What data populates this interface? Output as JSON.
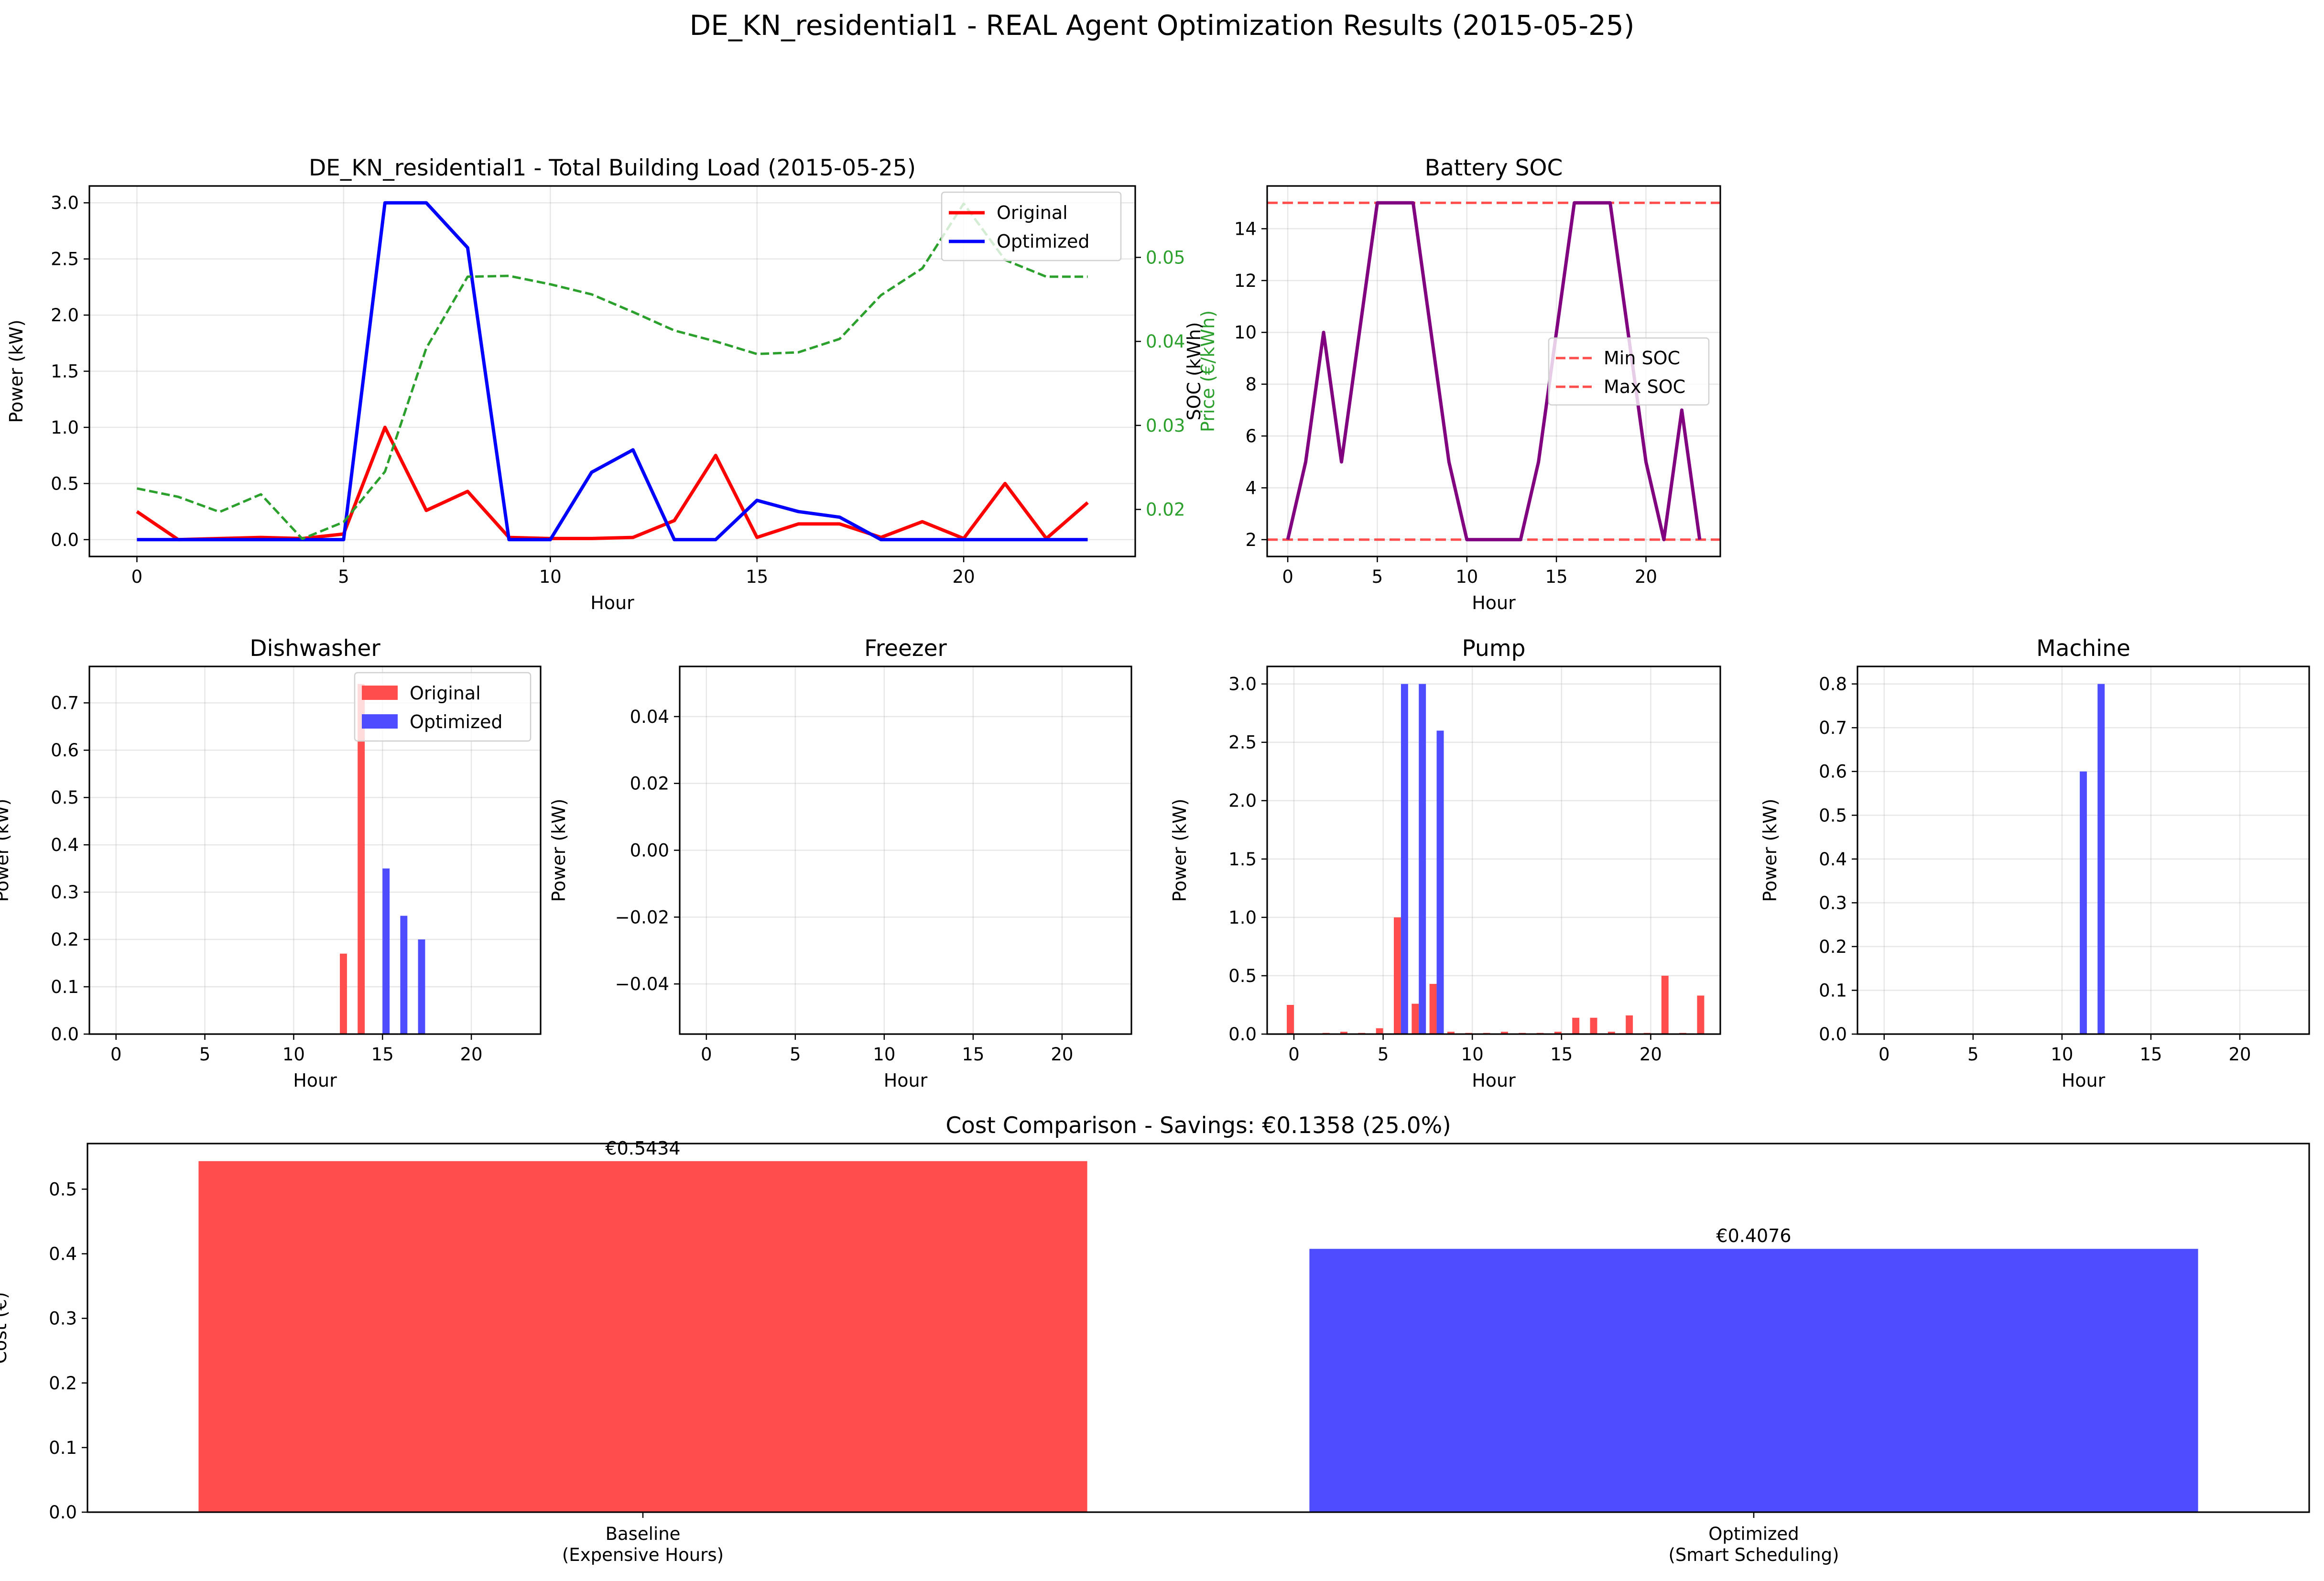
{
  "figure": {
    "title": "DE_KN_residential1 - REAL Agent Optimization Results (2015-05-25)"
  },
  "colors": {
    "original": "#ff0000",
    "optimized": "#0000ff",
    "price": "#2ca02c",
    "soc": "#800080",
    "soc_limit": "#ff4d4d",
    "bar_original": "#ff4d4d",
    "bar_optimized": "#4d4dff"
  },
  "chart_data": [
    {
      "id": "total",
      "type": "line",
      "title": "DE_KN_residential1 - Total Building Load (2015-05-25)",
      "xlabel": "Hour",
      "ylabel": "Power (kW)",
      "ylabel_right": "Price (€/kWh)",
      "xlim": [
        -1.15,
        24.15
      ],
      "ylim": [
        -0.15,
        3.15
      ],
      "ylim_right": [
        0.0144,
        0.0585
      ],
      "xticks": [
        0,
        5,
        10,
        15,
        20
      ],
      "yticks": [
        0.0,
        0.5,
        1.0,
        1.5,
        2.0,
        2.5,
        3.0
      ],
      "yticks_right": [
        0.02,
        0.03,
        0.04,
        0.05
      ],
      "grid": true,
      "legend_position": "top-right",
      "x": [
        0,
        1,
        2,
        3,
        4,
        5,
        6,
        7,
        8,
        9,
        10,
        11,
        12,
        13,
        14,
        15,
        16,
        17,
        18,
        19,
        20,
        21,
        22,
        23
      ],
      "series": [
        {
          "name": "Original",
          "color": "#ff0000",
          "axis": "left",
          "style": "solid",
          "values": [
            0.25,
            0.0,
            0.01,
            0.02,
            0.01,
            0.05,
            1.0,
            0.26,
            0.43,
            0.02,
            0.01,
            0.01,
            0.02,
            0.17,
            0.75,
            0.02,
            0.14,
            0.14,
            0.02,
            0.16,
            0.01,
            0.5,
            0.01,
            0.33
          ]
        },
        {
          "name": "Optimized",
          "color": "#0000ff",
          "axis": "left",
          "style": "solid",
          "values": [
            0.0,
            0.0,
            0.0,
            0.0,
            0.0,
            0.0,
            3.0,
            3.0,
            2.6,
            0.0,
            0.0,
            0.6,
            0.8,
            0.0,
            0.0,
            0.35,
            0.25,
            0.2,
            0.0,
            0.0,
            0.0,
            0.0,
            0.0,
            0.0
          ]
        },
        {
          "name": "",
          "color": "#2ca02c",
          "axis": "right",
          "style": "dashed",
          "values": [
            0.0225,
            0.0215,
            0.0197,
            0.0218,
            0.0165,
            0.0185,
            0.0245,
            0.0392,
            0.0477,
            0.0478,
            0.0468,
            0.0456,
            0.0435,
            0.0413,
            0.04,
            0.0385,
            0.0387,
            0.0403,
            0.0455,
            0.0487,
            0.0564,
            0.0497,
            0.0477,
            0.0477
          ]
        }
      ]
    },
    {
      "id": "soc",
      "type": "line",
      "title": "Battery SOC",
      "xlabel": "Hour",
      "ylabel": "SOC (kWh)",
      "xlim": [
        -1.15,
        24.15
      ],
      "ylim": [
        1.35,
        15.65
      ],
      "xticks": [
        0,
        5,
        10,
        15,
        20
      ],
      "yticks": [
        2,
        4,
        6,
        8,
        10,
        12,
        14
      ],
      "grid": true,
      "legend_position": "center-right",
      "x": [
        0,
        1,
        2,
        3,
        4,
        5,
        6,
        7,
        8,
        9,
        10,
        11,
        12,
        13,
        14,
        15,
        16,
        17,
        18,
        19,
        20,
        21,
        22,
        23
      ],
      "series": [
        {
          "name": "",
          "color": "#800080",
          "style": "solid",
          "values": [
            2,
            5,
            10,
            5,
            10,
            15,
            15,
            15,
            10,
            5,
            2,
            2,
            2,
            2,
            5,
            10,
            15,
            15,
            15,
            10,
            5,
            2,
            7,
            2
          ]
        }
      ],
      "hlines": [
        {
          "name": "Min SOC",
          "value": 2,
          "color": "#ff4d4d",
          "style": "dashed"
        },
        {
          "name": "Max SOC",
          "value": 15,
          "color": "#ff4d4d",
          "style": "dashed"
        }
      ]
    },
    {
      "id": "dishwasher",
      "type": "bar",
      "title": "Dishwasher",
      "xlabel": "Hour",
      "ylabel": "Power (kW)",
      "xlim": [
        -1.5,
        23.9
      ],
      "ylim": [
        0,
        0.777
      ],
      "xticks": [
        0,
        5,
        10,
        15,
        20
      ],
      "yticks": [
        0.0,
        0.1,
        0.2,
        0.3,
        0.4,
        0.5,
        0.6,
        0.7
      ],
      "grid": true,
      "legend_position": "top-right",
      "bar_width": 0.4,
      "x": [
        0,
        1,
        2,
        3,
        4,
        5,
        6,
        7,
        8,
        9,
        10,
        11,
        12,
        13,
        14,
        15,
        16,
        17,
        18,
        19,
        20,
        21,
        22,
        23
      ],
      "series": [
        {
          "name": "Original",
          "color": "#ff4d4d",
          "offset": -0.2,
          "values": [
            0,
            0,
            0,
            0,
            0,
            0,
            0,
            0,
            0,
            0,
            0,
            0,
            0,
            0.17,
            0.74,
            0,
            0,
            0,
            0,
            0,
            0,
            0,
            0,
            0
          ]
        },
        {
          "name": "Optimized",
          "color": "#4d4dff",
          "offset": 0.2,
          "values": [
            0,
            0,
            0,
            0,
            0,
            0,
            0,
            0,
            0,
            0,
            0,
            0,
            0,
            0,
            0,
            0.35,
            0.25,
            0.2,
            0,
            0,
            0,
            0,
            0,
            0
          ]
        }
      ]
    },
    {
      "id": "freezer",
      "type": "bar",
      "title": "Freezer",
      "xlabel": "Hour",
      "ylabel": "Power (kW)",
      "xlim": [
        -1.5,
        23.9
      ],
      "ylim": [
        -0.055,
        0.055
      ],
      "xticks": [
        0,
        5,
        10,
        15,
        20
      ],
      "yticks": [
        -0.04,
        -0.02,
        0.0,
        0.02,
        0.04
      ],
      "ytick_labels": [
        "−0.04",
        "−0.02",
        "0.00",
        "0.02",
        "0.04"
      ],
      "grid": true,
      "bar_width": 0.4,
      "x": [
        0,
        1,
        2,
        3,
        4,
        5,
        6,
        7,
        8,
        9,
        10,
        11,
        12,
        13,
        14,
        15,
        16,
        17,
        18,
        19,
        20,
        21,
        22,
        23
      ],
      "series": [
        {
          "name": "Original",
          "color": "#ff4d4d",
          "offset": -0.2,
          "values": [
            0,
            0,
            0,
            0,
            0,
            0,
            0,
            0,
            0,
            0,
            0,
            0,
            0,
            0,
            0,
            0,
            0,
            0,
            0,
            0,
            0,
            0,
            0,
            0
          ]
        },
        {
          "name": "Optimized",
          "color": "#4d4dff",
          "offset": 0.2,
          "values": [
            0,
            0,
            0,
            0,
            0,
            0,
            0,
            0,
            0,
            0,
            0,
            0,
            0,
            0,
            0,
            0,
            0,
            0,
            0,
            0,
            0,
            0,
            0,
            0
          ]
        }
      ]
    },
    {
      "id": "pump",
      "type": "bar",
      "title": "Pump",
      "xlabel": "Hour",
      "ylabel": "Power (kW)",
      "xlim": [
        -1.5,
        23.9
      ],
      "ylim": [
        0,
        3.15
      ],
      "xticks": [
        0,
        5,
        10,
        15,
        20
      ],
      "yticks": [
        0.0,
        0.5,
        1.0,
        1.5,
        2.0,
        2.5,
        3.0
      ],
      "grid": true,
      "bar_width": 0.4,
      "x": [
        0,
        1,
        2,
        3,
        4,
        5,
        6,
        7,
        8,
        9,
        10,
        11,
        12,
        13,
        14,
        15,
        16,
        17,
        18,
        19,
        20,
        21,
        22,
        23
      ],
      "series": [
        {
          "name": "Original",
          "color": "#ff4d4d",
          "offset": -0.2,
          "values": [
            0.25,
            0.0,
            0.01,
            0.02,
            0.01,
            0.05,
            1.0,
            0.26,
            0.43,
            0.02,
            0.01,
            0.01,
            0.02,
            0.01,
            0.01,
            0.02,
            0.14,
            0.14,
            0.02,
            0.16,
            0.01,
            0.5,
            0.01,
            0.33
          ]
        },
        {
          "name": "Optimized",
          "color": "#4d4dff",
          "offset": 0.2,
          "values": [
            0,
            0,
            0,
            0,
            0,
            0,
            3.0,
            3.0,
            2.6,
            0,
            0,
            0,
            0,
            0,
            0,
            0,
            0,
            0,
            0,
            0,
            0,
            0,
            0,
            0
          ]
        }
      ]
    },
    {
      "id": "machine",
      "type": "bar",
      "title": "Machine",
      "xlabel": "Hour",
      "ylabel": "Power (kW)",
      "xlim": [
        -1.5,
        23.9
      ],
      "ylim": [
        0,
        0.84
      ],
      "xticks": [
        0,
        5,
        10,
        15,
        20
      ],
      "yticks": [
        0.0,
        0.1,
        0.2,
        0.3,
        0.4,
        0.5,
        0.6,
        0.7,
        0.8
      ],
      "grid": true,
      "bar_width": 0.4,
      "x": [
        0,
        1,
        2,
        3,
        4,
        5,
        6,
        7,
        8,
        9,
        10,
        11,
        12,
        13,
        14,
        15,
        16,
        17,
        18,
        19,
        20,
        21,
        22,
        23
      ],
      "series": [
        {
          "name": "Original",
          "color": "#ff4d4d",
          "offset": -0.2,
          "values": [
            0,
            0,
            0,
            0,
            0,
            0,
            0,
            0,
            0,
            0,
            0,
            0,
            0,
            0,
            0,
            0,
            0,
            0,
            0,
            0,
            0,
            0,
            0,
            0
          ]
        },
        {
          "name": "Optimized",
          "color": "#4d4dff",
          "offset": 0.2,
          "values": [
            0,
            0,
            0,
            0,
            0,
            0,
            0,
            0,
            0,
            0,
            0,
            0.6,
            0.8,
            0,
            0,
            0,
            0,
            0,
            0,
            0,
            0,
            0,
            0,
            0
          ]
        }
      ]
    },
    {
      "id": "cost",
      "type": "bar",
      "title": "Cost Comparison - Savings: €0.1358 (25.0%)",
      "xlabel": "",
      "ylabel": "Cost (€)",
      "xlim": [
        -0.5,
        1.5
      ],
      "ylim": [
        0,
        0.5706
      ],
      "yticks": [
        0.0,
        0.1,
        0.2,
        0.3,
        0.4,
        0.5
      ],
      "grid": false,
      "bar_width": 0.8,
      "categories": [
        [
          "Baseline",
          "(Expensive Hours)"
        ],
        [
          "Optimized",
          "(Smart Scheduling)"
        ]
      ],
      "values": [
        0.5434,
        0.4076
      ],
      "value_labels": [
        "€0.5434",
        "€0.4076"
      ],
      "colors": [
        "#ff4d4d",
        "#4d4dff"
      ]
    }
  ]
}
